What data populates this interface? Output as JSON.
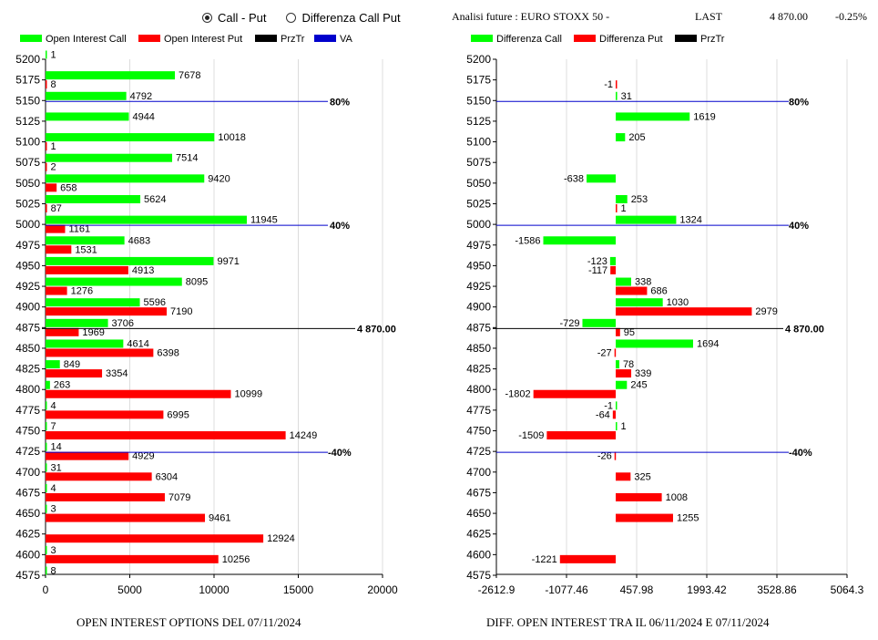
{
  "radio": {
    "opt1": "Call - Put",
    "opt2": "Differenza Call Put",
    "selected": "opt1"
  },
  "header": {
    "instrument": "Analisi future : EURO STOXX 50 -",
    "last_label": "LAST",
    "last_value": "4 870.00",
    "change": "-0.25%"
  },
  "chart_data": [
    {
      "type": "bar",
      "orientation": "horizontal",
      "title": "OPEN INTEREST OPTIONS DEL 07/11/2024",
      "legend": [
        {
          "label": "Open Interest Call",
          "color": "#00ff00"
        },
        {
          "label": "Open Interest Put",
          "color": "#ff0000"
        },
        {
          "label": "PrzTr",
          "color": "#000000"
        },
        {
          "label": "VA",
          "color": "#0000cc"
        }
      ],
      "categories": [
        "5200",
        "5175",
        "5150",
        "5125",
        "5100",
        "5075",
        "5050",
        "5025",
        "5000",
        "4975",
        "4950",
        "4925",
        "4900",
        "4875",
        "4850",
        "4825",
        "4800",
        "4775",
        "4750",
        "4725",
        "4700",
        "4675",
        "4650",
        "4625",
        "4600",
        "4575"
      ],
      "series": [
        {
          "name": "Open Interest Call",
          "values": [
            1,
            7678,
            4792,
            4944,
            10018,
            7514,
            9420,
            5624,
            11945,
            4683,
            9971,
            8095,
            5596,
            3706,
            4614,
            849,
            263,
            4,
            7,
            14,
            31,
            4,
            3,
            null,
            3,
            8
          ]
        },
        {
          "name": "Open Interest Put",
          "values": [
            null,
            8,
            null,
            null,
            1,
            2,
            658,
            87,
            1161,
            1531,
            4913,
            1276,
            7190,
            1969,
            6398,
            3354,
            10999,
            6995,
            14249,
            4929,
            6304,
            7079,
            9461,
            12924,
            10256,
            null
          ]
        }
      ],
      "x_ticks": [
        "0",
        "5000",
        "10000",
        "15000",
        "20000"
      ],
      "xlim": [
        0,
        20000
      ],
      "reference_lines": [
        {
          "strike": "5150",
          "label": "80%",
          "color": "#0000cc"
        },
        {
          "strike": "5000",
          "label": "40%",
          "color": "#0000cc"
        },
        {
          "strike": "4875",
          "label": "4 870.00",
          "color": "#000000"
        },
        {
          "strike": "4725",
          "label": "-40%",
          "color": "#0000cc"
        }
      ]
    },
    {
      "type": "bar",
      "orientation": "horizontal",
      "title": "DIFF. OPEN INTEREST TRA IL 06/11/2024 E 07/11/2024",
      "legend": [
        {
          "label": "Differenza Call",
          "color": "#00ff00"
        },
        {
          "label": "Differenza Put",
          "color": "#ff0000"
        },
        {
          "label": "PrzTr",
          "color": "#000000"
        }
      ],
      "categories": [
        "5200",
        "5175",
        "5150",
        "5125",
        "5100",
        "5075",
        "5050",
        "5025",
        "5000",
        "4975",
        "4950",
        "4925",
        "4900",
        "4875",
        "4850",
        "4825",
        "4800",
        "4775",
        "4750",
        "4725",
        "4700",
        "4675",
        "4650",
        "4625",
        "4600",
        "4575"
      ],
      "series": [
        {
          "name": "Differenza Call",
          "values": [
            null,
            null,
            31,
            1619,
            205,
            null,
            -638,
            253,
            1324,
            -1586,
            -123,
            338,
            1030,
            -729,
            1694,
            78,
            245,
            -1,
            1,
            null,
            null,
            null,
            null,
            null,
            null,
            null
          ]
        },
        {
          "name": "Differenza Put",
          "values": [
            null,
            -1,
            null,
            null,
            null,
            null,
            null,
            1,
            null,
            null,
            -117,
            686,
            2979,
            95,
            -27,
            339,
            -1802,
            -64,
            -1509,
            -26,
            325,
            1008,
            1255,
            null,
            -1221,
            null
          ]
        }
      ],
      "x_ticks": [
        "-2612.9",
        "-1077.46",
        "457.98",
        "1993.42",
        "3528.86",
        "5064.3"
      ],
      "xlim": [
        -2612.9,
        5064.3
      ],
      "reference_lines": [
        {
          "strike": "5150",
          "label": "80%",
          "color": "#0000cc"
        },
        {
          "strike": "5000",
          "label": "40%",
          "color": "#0000cc"
        },
        {
          "strike": "4875",
          "label": "4 870.00",
          "color": "#000000"
        },
        {
          "strike": "4725",
          "label": "-40%",
          "color": "#0000cc"
        }
      ]
    }
  ]
}
